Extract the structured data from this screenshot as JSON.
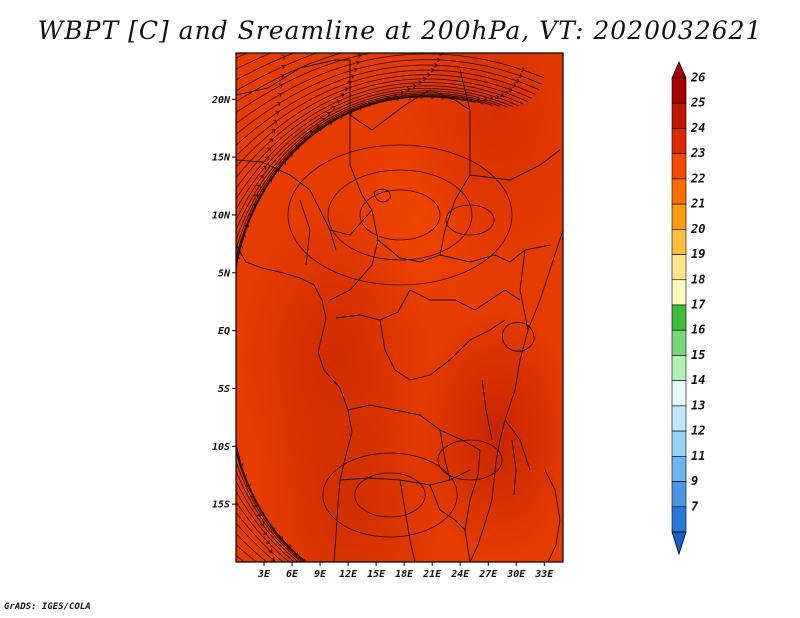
{
  "title": "WBPT [C] and Sreamline at 200hPa, VT: 2020032621",
  "footer": "GrADS: IGES/COLA",
  "map": {
    "projection": "lat-lon",
    "lon_range": [
      0,
      35
    ],
    "lat_range": [
      -20,
      24
    ],
    "field": "WBPT",
    "field_value_range_shown": [
      23,
      25
    ],
    "streamlines": "200hPa",
    "lat_labels": [
      {
        "text": "20N",
        "lat": 20
      },
      {
        "text": "15N",
        "lat": 15
      },
      {
        "text": "10N",
        "lat": 10
      },
      {
        "text": "5N",
        "lat": 5
      },
      {
        "text": "EQ",
        "lat": 0
      },
      {
        "text": "5S",
        "lat": -5
      },
      {
        "text": "10S",
        "lat": -10
      },
      {
        "text": "15S",
        "lat": -15
      }
    ],
    "lon_labels": [
      {
        "text": "3E",
        "lon": 3
      },
      {
        "text": "6E",
        "lon": 6
      },
      {
        "text": "9E",
        "lon": 9
      },
      {
        "text": "12E",
        "lon": 12
      },
      {
        "text": "15E",
        "lon": 15
      },
      {
        "text": "18E",
        "lon": 18
      },
      {
        "text": "21E",
        "lon": 21
      },
      {
        "text": "24E",
        "lon": 24
      },
      {
        "text": "27E",
        "lon": 27
      },
      {
        "text": "30E",
        "lon": 30
      },
      {
        "text": "33E",
        "lon": 33
      }
    ]
  },
  "colorbar": {
    "levels": [
      {
        "label": "26",
        "color": "#a50000"
      },
      {
        "label": "25",
        "color": "#c01800"
      },
      {
        "label": "24",
        "color": "#dc2a00"
      },
      {
        "label": "23",
        "color": "#f44a00"
      },
      {
        "label": "22",
        "color": "#fa6e00"
      },
      {
        "label": "21",
        "color": "#fc9a10"
      },
      {
        "label": "20",
        "color": "#fdbf40"
      },
      {
        "label": "19",
        "color": "#fee38a"
      },
      {
        "label": "18",
        "color": "#fff8bc"
      },
      {
        "label": "17",
        "color": "#3cbe3c"
      },
      {
        "label": "16",
        "color": "#78d878"
      },
      {
        "label": "15",
        "color": "#b4f0b4"
      },
      {
        "label": "14",
        "color": "#e4fbf7"
      },
      {
        "label": "13",
        "color": "#bfe6ff"
      },
      {
        "label": "12",
        "color": "#96d2fa"
      },
      {
        "label": "11",
        "color": "#6eb4f0"
      },
      {
        "label": "9",
        "color": "#4a96e6"
      },
      {
        "label": "7",
        "color": "#2878dc"
      }
    ],
    "bottom_color": "#1460c8"
  }
}
